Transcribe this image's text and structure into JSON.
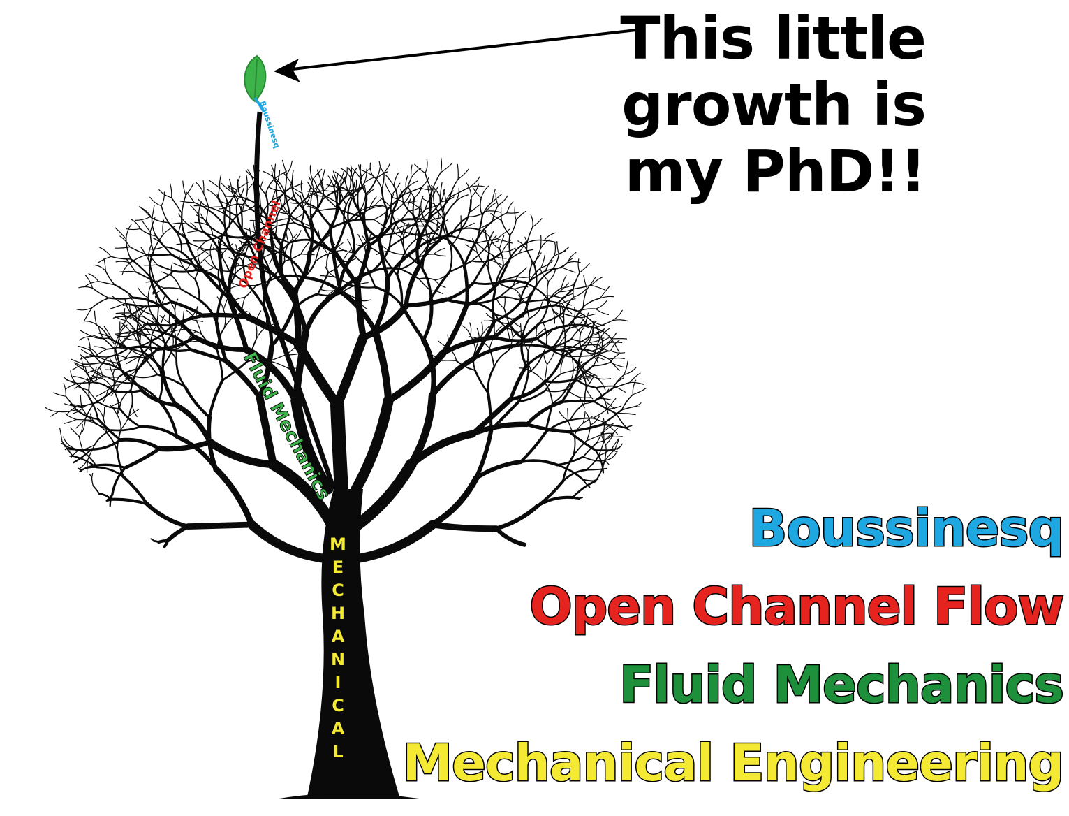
{
  "caption": {
    "lines": [
      "This little",
      "growth is",
      "my PhD!!"
    ]
  },
  "tree_labels": {
    "twig": "Boussinesq",
    "upper_branch": "Open Channel",
    "middle_branch": "Fluid Mechanics",
    "trunk": "MECHANICAL"
  },
  "legend": [
    {
      "text": "Boussinesq",
      "color": "#1ea7e1"
    },
    {
      "text": "Open Channel Flow",
      "color": "#e52420"
    },
    {
      "text": "Fluid Mechanics",
      "color": "#1e8f3a"
    },
    {
      "text": "Mechanical Engineering",
      "color": "#f4ea34"
    }
  ],
  "colors": {
    "tree": "#0a0a0a",
    "leaf": "#3cb44a",
    "arrow": "#000000"
  },
  "icons": {
    "leaf": "leaf-icon",
    "arrow": "arrow-icon"
  }
}
